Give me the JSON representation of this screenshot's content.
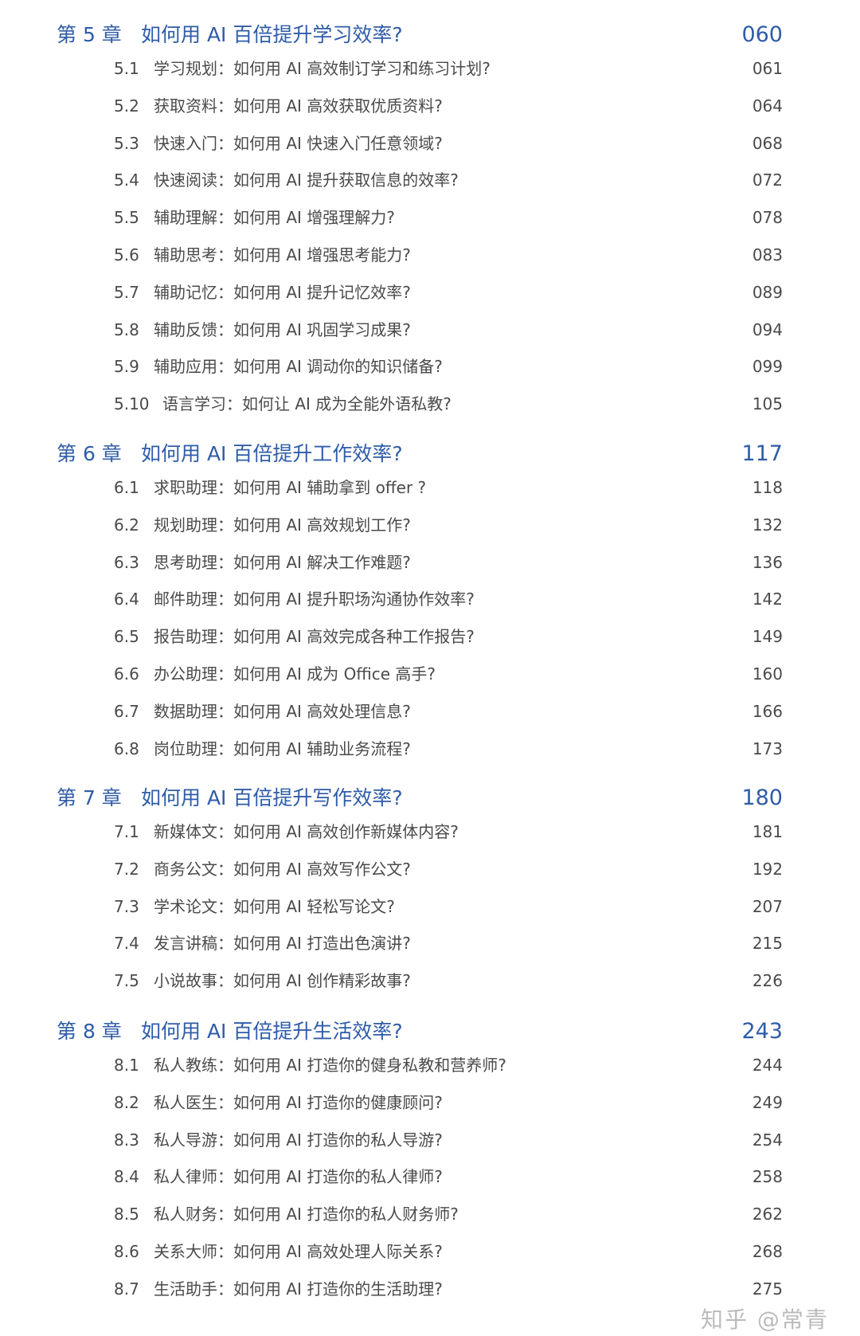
{
  "chapters": [
    {
      "num": "第 5 章",
      "title": "如何用 AI 百倍提升学习效率?",
      "page": "060",
      "sections": [
        {
          "num": "5.1",
          "title": "学习规划：如何用 AI 高效制订学习和练习计划?",
          "page": "061"
        },
        {
          "num": "5.2",
          "title": "获取资料：如何用 AI 高效获取优质资料?",
          "page": "064"
        },
        {
          "num": "5.3",
          "title": "快速入门：如何用 AI 快速入门任意领域?",
          "page": "068"
        },
        {
          "num": "5.4",
          "title": "快速阅读：如何用 AI 提升获取信息的效率?",
          "page": "072"
        },
        {
          "num": "5.5",
          "title": "辅助理解：如何用 AI 增强理解力?",
          "page": "078"
        },
        {
          "num": "5.6",
          "title": "辅助思考：如何用 AI 增强思考能力?",
          "page": "083"
        },
        {
          "num": "5.7",
          "title": "辅助记忆：如何用 AI 提升记忆效率?",
          "page": "089"
        },
        {
          "num": "5.8",
          "title": "辅助反馈：如何用 AI 巩固学习成果?",
          "page": "094"
        },
        {
          "num": "5.9",
          "title": "辅助应用：如何用 AI 调动你的知识储备?",
          "page": "099"
        },
        {
          "num": "5.10",
          "title": "语言学习：如何让 AI 成为全能外语私教?",
          "page": "105"
        }
      ]
    },
    {
      "num": "第 6 章",
      "title": "如何用 AI 百倍提升工作效率?",
      "page": "117",
      "sections": [
        {
          "num": "6.1",
          "title": "求职助理：如何用 AI 辅助拿到 offer ?",
          "page": "118"
        },
        {
          "num": "6.2",
          "title": "规划助理：如何用 AI 高效规划工作?",
          "page": "132"
        },
        {
          "num": "6.3",
          "title": "思考助理：如何用 AI 解决工作难题?",
          "page": "136"
        },
        {
          "num": "6.4",
          "title": "邮件助理：如何用 AI 提升职场沟通协作效率?",
          "page": "142"
        },
        {
          "num": "6.5",
          "title": "报告助理：如何用 AI 高效完成各种工作报告?",
          "page": "149"
        },
        {
          "num": "6.6",
          "title": "办公助理：如何用 AI 成为 Office 高手?",
          "page": "160"
        },
        {
          "num": "6.7",
          "title": "数据助理：如何用 AI 高效处理信息?",
          "page": "166"
        },
        {
          "num": "6.8",
          "title": "岗位助理：如何用 AI 辅助业务流程?",
          "page": "173"
        }
      ]
    },
    {
      "num": "第 7 章",
      "title": "如何用 AI 百倍提升写作效率?",
      "page": "180",
      "sections": [
        {
          "num": "7.1",
          "title": "新媒体文：如何用 AI 高效创作新媒体内容?",
          "page": "181"
        },
        {
          "num": "7.2",
          "title": "商务公文：如何用 AI 高效写作公文?",
          "page": "192"
        },
        {
          "num": "7.3",
          "title": "学术论文：如何用 AI 轻松写论文?",
          "page": "207"
        },
        {
          "num": "7.4",
          "title": "发言讲稿：如何用 AI 打造出色演讲?",
          "page": "215"
        },
        {
          "num": "7.5",
          "title": "小说故事：如何用 AI 创作精彩故事?",
          "page": "226"
        }
      ]
    },
    {
      "num": "第 8 章",
      "title": "如何用 AI 百倍提升生活效率?",
      "page": "243",
      "sections": [
        {
          "num": "8.1",
          "title": "私人教练：如何用 AI 打造你的健身私教和营养师?",
          "page": "244"
        },
        {
          "num": "8.2",
          "title": "私人医生：如何用 AI 打造你的健康顾问?",
          "page": "249"
        },
        {
          "num": "8.3",
          "title": "私人导游：如何用 AI 打造你的私人导游?",
          "page": "254"
        },
        {
          "num": "8.4",
          "title": "私人律师：如何用 AI 打造你的私人律师?",
          "page": "258"
        },
        {
          "num": "8.5",
          "title": "私人财务：如何用 AI 打造你的私人财务师?",
          "page": "262"
        },
        {
          "num": "8.6",
          "title": "关系大师：如何用 AI 高效处理人际关系?",
          "page": "268"
        },
        {
          "num": "8.7",
          "title": "生活助手：如何用 AI 打造你的生活助理?",
          "page": "275"
        }
      ]
    }
  ],
  "watermark": "知乎 @常青",
  "colors": {
    "chapter": "#2f5ca8",
    "section": "#4a4a4a"
  }
}
